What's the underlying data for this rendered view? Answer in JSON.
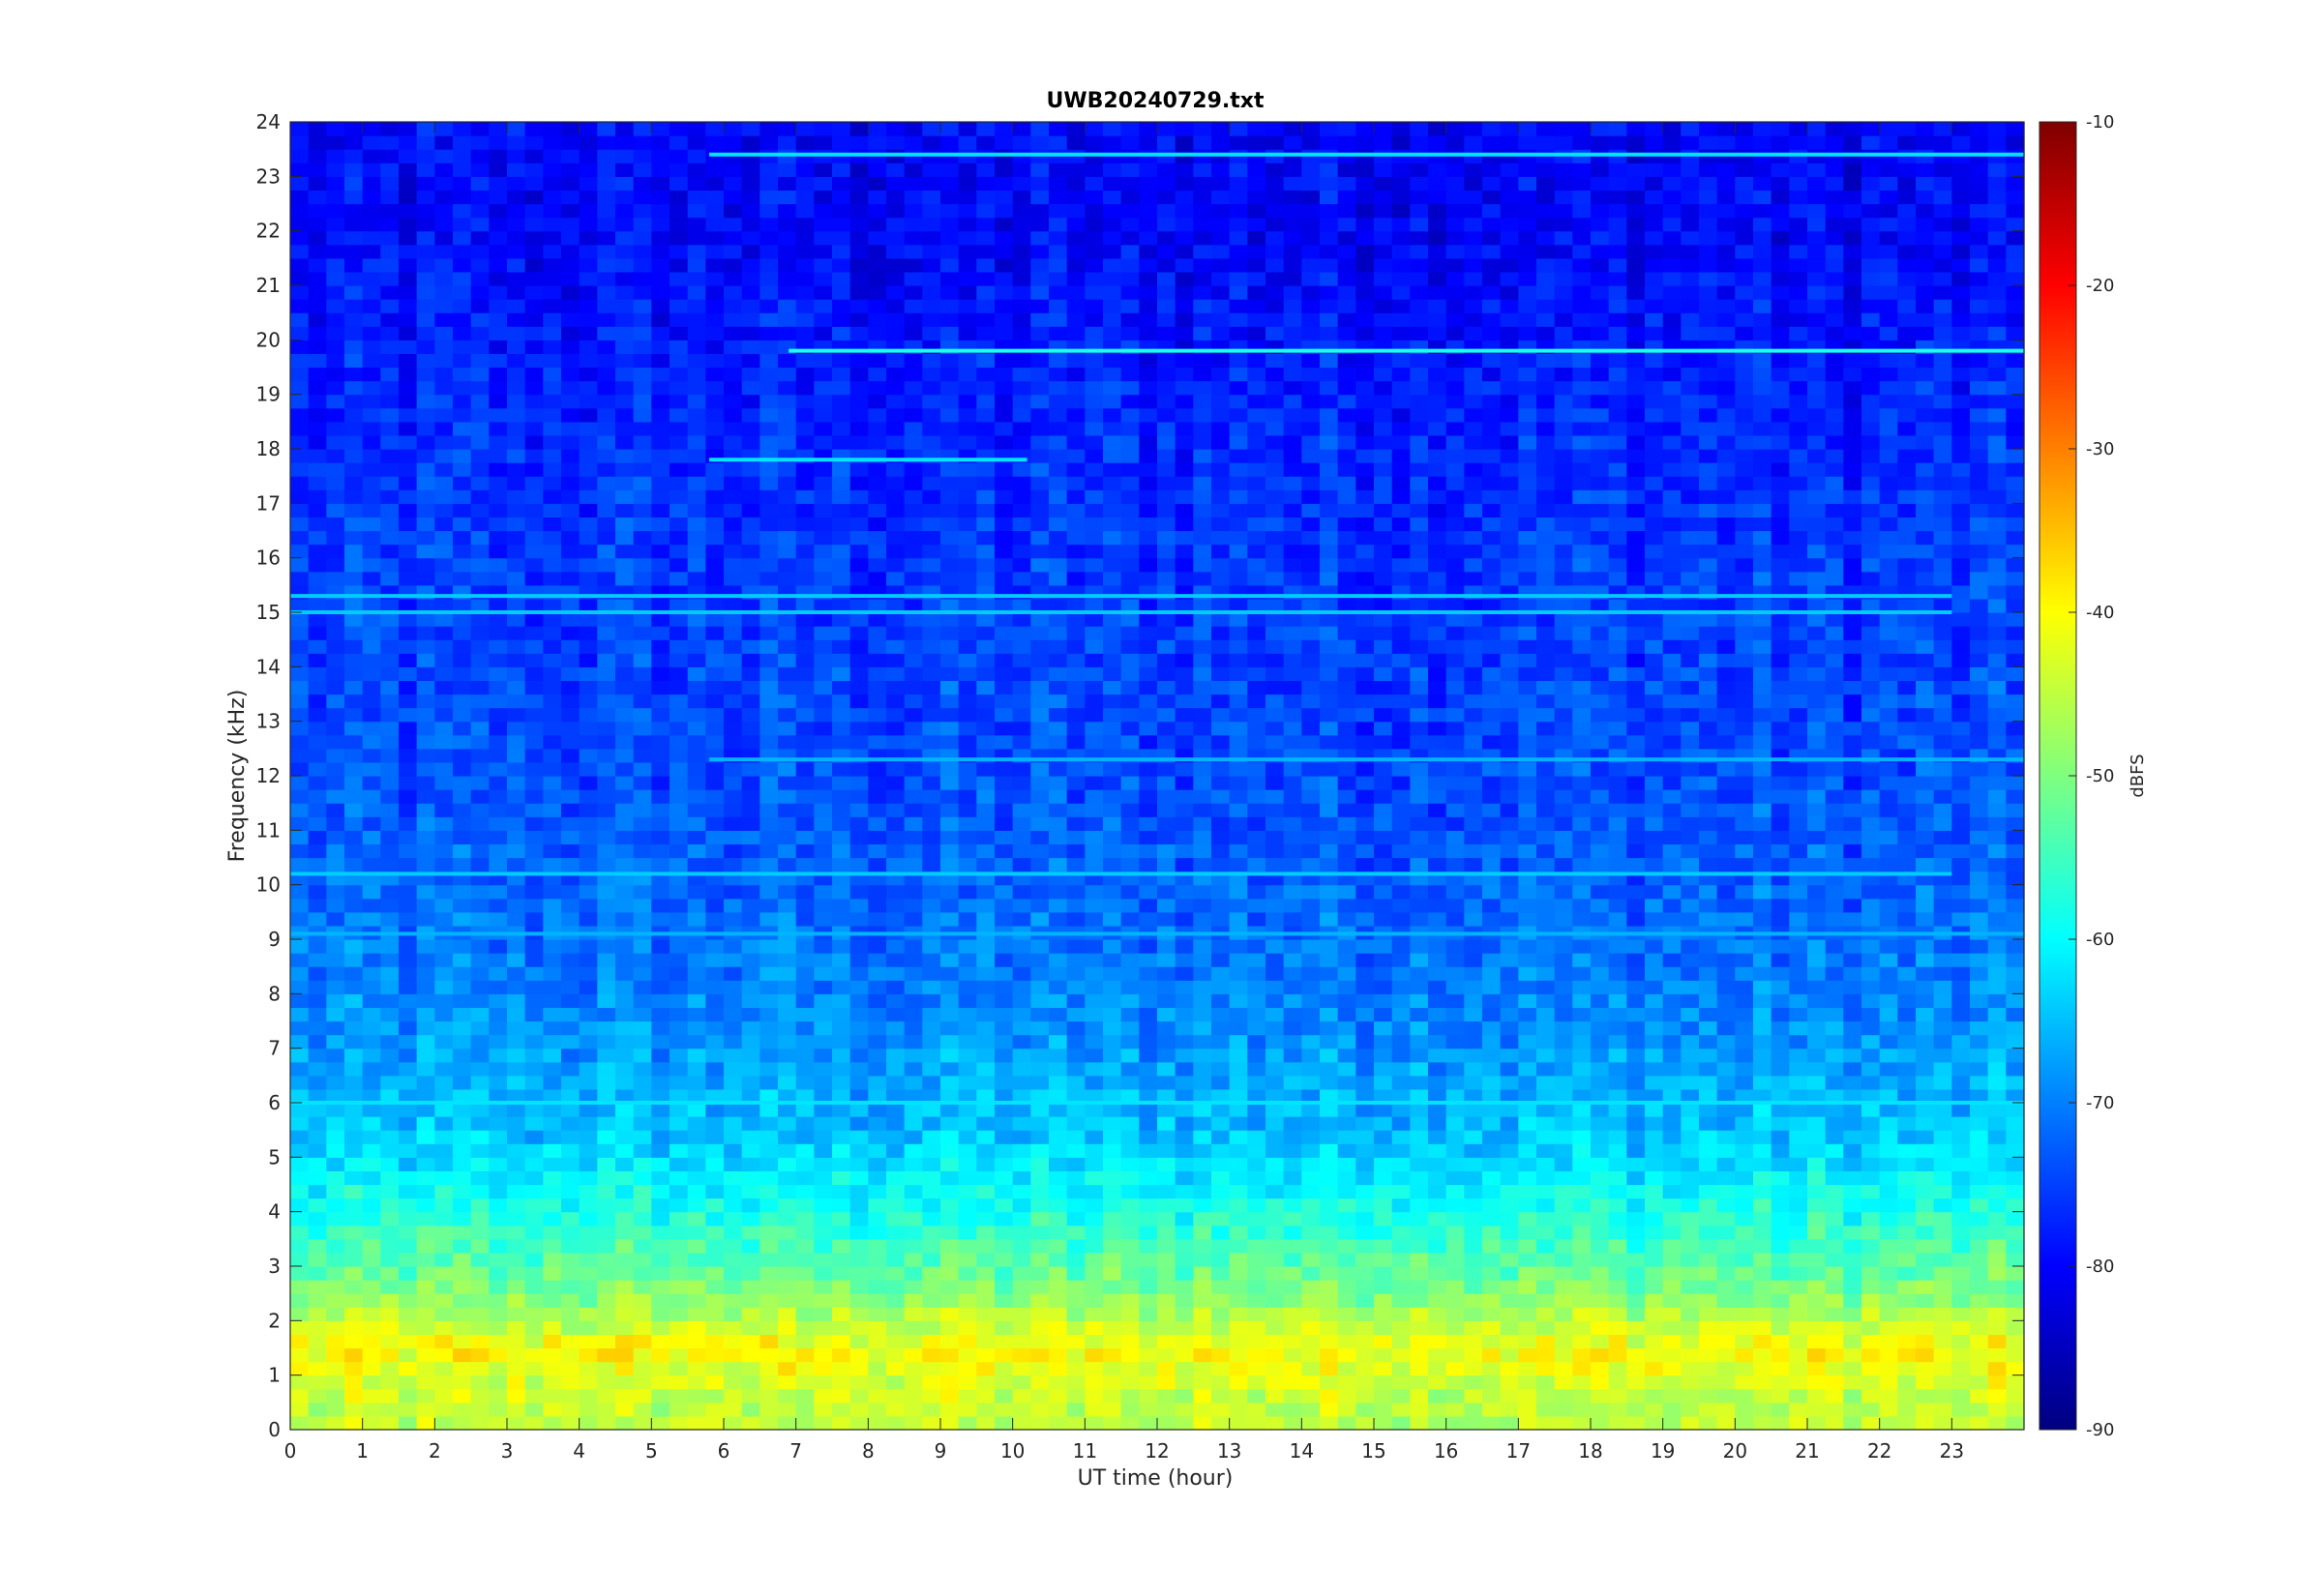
{
  "chart_data": {
    "type": "heatmap",
    "title": "UWB20240729.txt",
    "xlabel": "UT time (hour)",
    "ylabel": "Frequency (kHz)",
    "xlim": [
      0,
      24
    ],
    "ylim": [
      0,
      24
    ],
    "x_ticks": [
      "0",
      "1",
      "2",
      "3",
      "4",
      "5",
      "6",
      "7",
      "8",
      "9",
      "10",
      "11",
      "12",
      "13",
      "14",
      "15",
      "16",
      "17",
      "18",
      "19",
      "20",
      "21",
      "22",
      "23"
    ],
    "y_ticks": [
      "0",
      "1",
      "2",
      "3",
      "4",
      "5",
      "6",
      "7",
      "8",
      "9",
      "10",
      "11",
      "12",
      "13",
      "14",
      "15",
      "16",
      "17",
      "18",
      "19",
      "20",
      "21",
      "22",
      "23",
      "24"
    ],
    "colorbar": {
      "label": "dBFS",
      "range": [
        -90,
        -10
      ],
      "colormap": "jet",
      "ticks": [
        "-10",
        "-20",
        "-30",
        "-40",
        "-50",
        "-60",
        "-70",
        "-80",
        "-90"
      ]
    },
    "persistent_lines": [
      {
        "freq_khz": 23.4,
        "t_start": 5.8,
        "t_end": 24,
        "level_dbfs": -62
      },
      {
        "freq_khz": 19.8,
        "t_start": 6.9,
        "t_end": 24,
        "level_dbfs": -58
      },
      {
        "freq_khz": 17.8,
        "t_start": 5.8,
        "t_end": 10.2,
        "level_dbfs": -62
      },
      {
        "freq_khz": 15.3,
        "t_start": 0,
        "t_end": 23,
        "level_dbfs": -64
      },
      {
        "freq_khz": 15.0,
        "t_start": 0,
        "t_end": 23,
        "level_dbfs": -64
      },
      {
        "freq_khz": 12.3,
        "t_start": 5.8,
        "t_end": 24,
        "level_dbfs": -66
      },
      {
        "freq_khz": 10.2,
        "t_start": 0,
        "t_end": 23,
        "level_dbfs": -64
      },
      {
        "freq_khz": 9.1,
        "t_start": 0,
        "t_end": 24,
        "level_dbfs": -66
      },
      {
        "freq_khz": 6.0,
        "t_start": 0,
        "t_end": 24,
        "level_dbfs": -62
      }
    ],
    "background_profile": [
      {
        "freq_khz": 0.5,
        "level_dbfs": -45
      },
      {
        "freq_khz": 1.5,
        "level_dbfs": -40
      },
      {
        "freq_khz": 2.5,
        "level_dbfs": -50
      },
      {
        "freq_khz": 4,
        "level_dbfs": -58
      },
      {
        "freq_khz": 5.5,
        "level_dbfs": -65
      },
      {
        "freq_khz": 8,
        "level_dbfs": -70
      },
      {
        "freq_khz": 12,
        "level_dbfs": -74
      },
      {
        "freq_khz": 17,
        "level_dbfs": -76
      },
      {
        "freq_khz": 22,
        "level_dbfs": -80
      }
    ]
  },
  "colors": {
    "jet_low": "#00007f",
    "jet_high": "#7f0000"
  }
}
